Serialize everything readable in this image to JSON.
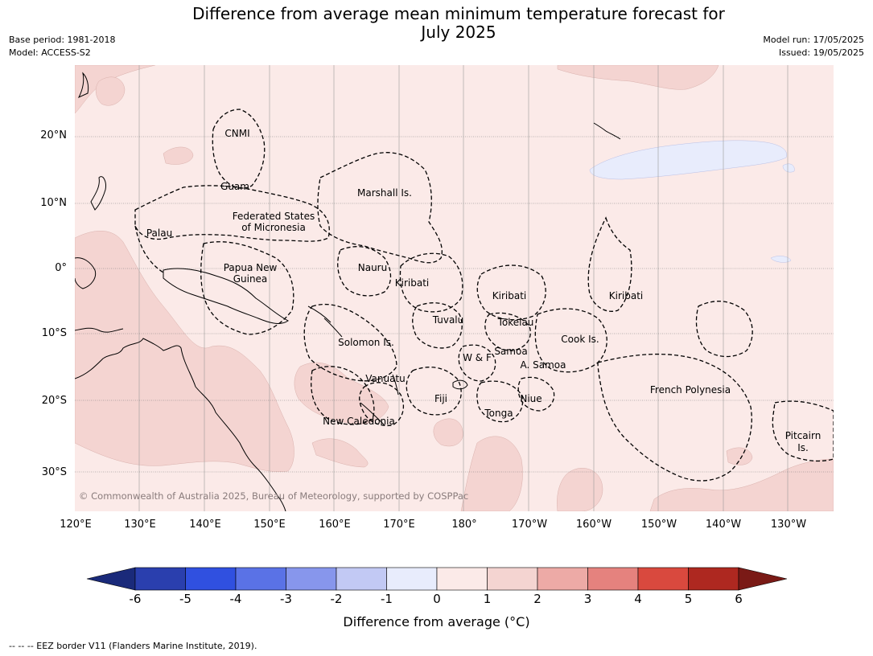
{
  "title_line1": "Difference from average mean minimum temperature forecast for",
  "title_line2": "July 2025",
  "base_period": "Base period: 1981-2018",
  "model": "Model: ACCESS-S2",
  "model_run": "Model run: 17/05/2025",
  "issued": "Issued: 19/05/2025",
  "copyright": "© Commonwealth of Australia 2025, Bureau of Meteorology, supported by COSPPac",
  "lat_labels": [
    "20°N",
    "10°N",
    "0°",
    "10°S",
    "20°S",
    "30°S"
  ],
  "lon_labels": [
    "120°E",
    "130°E",
    "140°E",
    "150°E",
    "160°E",
    "170°E",
    "180°",
    "170°W",
    "160°W",
    "150°W",
    "140°W",
    "130°W"
  ],
  "region_labels": [
    "CNMI",
    "Guam",
    "Marshall Is.",
    "Federated States",
    "of Micronesia",
    "Palau",
    "Papua New",
    "Guinea",
    "Nauru",
    "Kiribati",
    "Kiribati",
    "Kiribati",
    "Tuvalu",
    "Tokelau",
    "Cook Is.",
    "Solomon Is.",
    "W & F",
    "Samoa",
    "A. Samoa",
    "Vanuatu",
    "Fiji",
    "Niue",
    "Tonga",
    "French Polynesia",
    "New Caledonia",
    "Pitcairn",
    "Is."
  ],
  "colorbar": {
    "ticks": [
      "-6",
      "-5",
      "-4",
      "-3",
      "-2",
      "-1",
      "0",
      "1",
      "2",
      "3",
      "4",
      "5",
      "6"
    ],
    "label": "Difference from average ($^\\circ$C)",
    "label_display": "Difference from average (°C)",
    "colors": {
      "below_min": "#1a2a7a",
      "-6_-5": "#2a3fae",
      "-5_-4": "#3050e0",
      "-4_-3": "#5a72e6",
      "-3_-2": "#8796ec",
      "-2_-1": "#c2c9f4",
      "-1_0": "#e8ecfc",
      "0_1": "#fbeae8",
      "1_2": "#f4d4d1",
      "2_3": "#edaaa6",
      "3_4": "#e5827e",
      "4_5": "#d9493e",
      "5_6": "#ae2820",
      "above_max": "#7a1a16"
    }
  },
  "footnote": "--  --  -- EEZ border V11 (Flanders Marine Institute, 2019)."
}
